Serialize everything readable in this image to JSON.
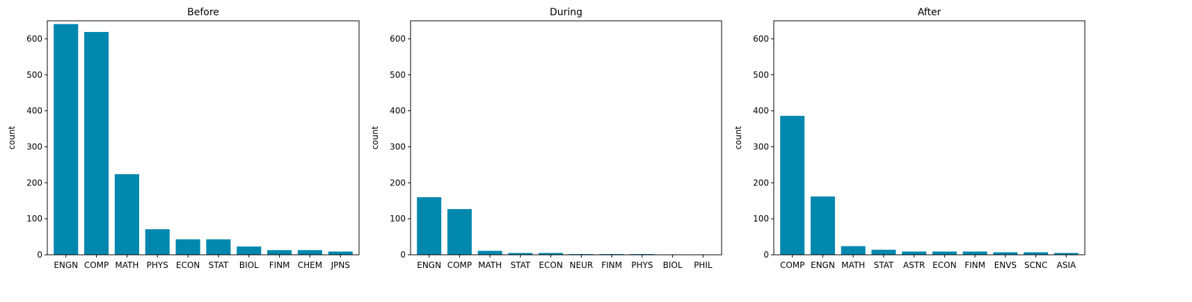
{
  "chart_data": [
    {
      "type": "bar",
      "title": "Before",
      "xlabel": "",
      "ylabel": "count",
      "ylim": [
        0,
        650
      ],
      "yticks": [
        "0",
        "100",
        "200",
        "300",
        "400",
        "500",
        "600"
      ],
      "categories": [
        "ENGN",
        "COMP",
        "MATH",
        "PHYS",
        "ECON",
        "STAT",
        "BIOL",
        "FINM",
        "CHEM",
        "JPNS"
      ],
      "values": [
        641,
        619,
        224,
        71,
        43,
        43,
        23,
        13,
        13,
        9
      ],
      "color": "#0087ae",
      "grid": false
    },
    {
      "type": "bar",
      "title": "During",
      "xlabel": "",
      "ylabel": "count",
      "ylim": [
        0,
        650
      ],
      "yticks": [
        "0",
        "100",
        "200",
        "300",
        "400",
        "500",
        "600"
      ],
      "categories": [
        "ENGN",
        "COMP",
        "MATH",
        "STAT",
        "ECON",
        "NEUR",
        "FINM",
        "PHYS",
        "BIOL",
        "PHIL"
      ],
      "values": [
        160,
        127,
        11,
        5,
        5,
        2,
        2,
        2,
        1,
        1
      ],
      "color": "#0087ae",
      "grid": false
    },
    {
      "type": "bar",
      "title": "After",
      "xlabel": "",
      "ylabel": "count",
      "ylim": [
        0,
        650
      ],
      "yticks": [
        "0",
        "100",
        "200",
        "300",
        "400",
        "500",
        "600"
      ],
      "categories": [
        "COMP",
        "ENGN",
        "MATH",
        "STAT",
        "ASTR",
        "ECON",
        "FINM",
        "ENVS",
        "SCNC",
        "ASIA"
      ],
      "values": [
        386,
        162,
        24,
        14,
        9,
        9,
        9,
        7,
        7,
        5
      ],
      "color": "#0087ae",
      "grid": false
    }
  ]
}
